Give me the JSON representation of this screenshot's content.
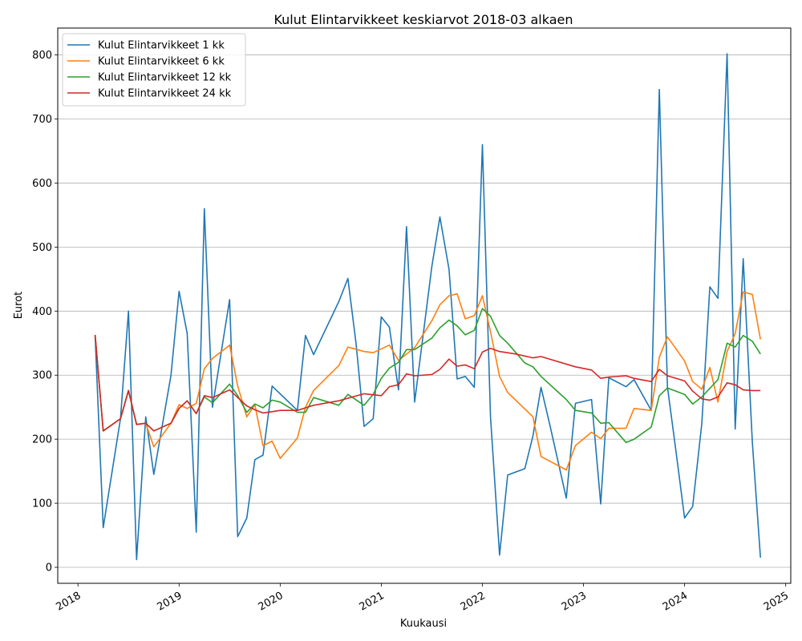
{
  "chart_data": {
    "type": "line",
    "title": "Kulut Elintarvikkeet keskiarvot 2018-03 alkaen",
    "xlabel": "Kuukausi",
    "ylabel": "Eurot",
    "xlim": [
      2017.8,
      2025.05
    ],
    "ylim": [
      -25,
      842
    ],
    "grid": "horizontal",
    "legend_position": "top-left",
    "x_ticks": [
      {
        "label": "2018",
        "value": 2018.0
      },
      {
        "label": "2019",
        "value": 2019.0
      },
      {
        "label": "2020",
        "value": 2020.0
      },
      {
        "label": "2021",
        "value": 2021.0
      },
      {
        "label": "2022",
        "value": 2022.0
      },
      {
        "label": "2023",
        "value": 2023.0
      },
      {
        "label": "2024",
        "value": 2024.0
      },
      {
        "label": "2025",
        "value": 2025.0
      }
    ],
    "y_ticks": [
      0,
      100,
      200,
      300,
      400,
      500,
      600,
      700,
      800
    ],
    "series": [
      {
        "name": "Kulut Elintarvikkeet 1 kk",
        "color": "#1f77b4",
        "points": [
          [
            2018.17,
            362
          ],
          [
            2018.25,
            62
          ],
          [
            2018.42,
            232
          ],
          [
            2018.5,
            400
          ],
          [
            2018.58,
            12
          ],
          [
            2018.67,
            235
          ],
          [
            2018.75,
            145
          ],
          [
            2018.92,
            300
          ],
          [
            2019.0,
            431
          ],
          [
            2019.08,
            365
          ],
          [
            2019.17,
            55
          ],
          [
            2019.25,
            560
          ],
          [
            2019.33,
            250
          ],
          [
            2019.5,
            418
          ],
          [
            2019.58,
            48
          ],
          [
            2019.67,
            77
          ],
          [
            2019.75,
            168
          ],
          [
            2019.83,
            175
          ],
          [
            2019.92,
            283
          ],
          [
            2020.17,
            245
          ],
          [
            2020.25,
            362
          ],
          [
            2020.33,
            332
          ],
          [
            2020.58,
            415
          ],
          [
            2020.67,
            451
          ],
          [
            2020.75,
            350
          ],
          [
            2020.83,
            220
          ],
          [
            2020.92,
            232
          ],
          [
            2021.0,
            391
          ],
          [
            2021.08,
            375
          ],
          [
            2021.17,
            277
          ],
          [
            2021.25,
            532
          ],
          [
            2021.33,
            258
          ],
          [
            2021.5,
            470
          ],
          [
            2021.58,
            547
          ],
          [
            2021.67,
            465
          ],
          [
            2021.75,
            294
          ],
          [
            2021.83,
            298
          ],
          [
            2021.92,
            281
          ],
          [
            2022.0,
            660
          ],
          [
            2022.08,
            235
          ],
          [
            2022.17,
            19
          ],
          [
            2022.25,
            144
          ],
          [
            2022.42,
            154
          ],
          [
            2022.5,
            205
          ],
          [
            2022.58,
            281
          ],
          [
            2022.67,
            220
          ],
          [
            2022.83,
            108
          ],
          [
            2022.92,
            256
          ],
          [
            2023.08,
            262
          ],
          [
            2023.17,
            99
          ],
          [
            2023.25,
            296
          ],
          [
            2023.42,
            282
          ],
          [
            2023.5,
            293
          ],
          [
            2023.67,
            245
          ],
          [
            2023.75,
            746
          ],
          [
            2023.83,
            282
          ],
          [
            2023.92,
            175
          ],
          [
            2024.0,
            77
          ],
          [
            2024.08,
            95
          ],
          [
            2024.17,
            225
          ],
          [
            2024.25,
            438
          ],
          [
            2024.33,
            420
          ],
          [
            2024.42,
            802
          ],
          [
            2024.5,
            216
          ],
          [
            2024.58,
            482
          ],
          [
            2024.67,
            195
          ],
          [
            2024.75,
            15
          ]
        ]
      },
      {
        "name": "Kulut Elintarvikkeet 6 kk",
        "color": "#ff7f0e",
        "points": [
          [
            2018.17,
            363
          ],
          [
            2018.25,
            213
          ],
          [
            2018.42,
            232
          ],
          [
            2018.5,
            276
          ],
          [
            2018.58,
            223
          ],
          [
            2018.67,
            225
          ],
          [
            2018.75,
            188
          ],
          [
            2018.92,
            225
          ],
          [
            2019.0,
            254
          ],
          [
            2019.08,
            248
          ],
          [
            2019.17,
            256
          ],
          [
            2019.25,
            310
          ],
          [
            2019.33,
            326
          ],
          [
            2019.5,
            347
          ],
          [
            2019.58,
            283
          ],
          [
            2019.67,
            235
          ],
          [
            2019.75,
            254
          ],
          [
            2019.83,
            190
          ],
          [
            2019.92,
            197
          ],
          [
            2020.0,
            170
          ],
          [
            2020.17,
            202
          ],
          [
            2020.25,
            250
          ],
          [
            2020.33,
            276
          ],
          [
            2020.58,
            315
          ],
          [
            2020.67,
            344
          ],
          [
            2020.83,
            337
          ],
          [
            2020.92,
            335
          ],
          [
            2021.08,
            347
          ],
          [
            2021.17,
            323
          ],
          [
            2021.33,
            343
          ],
          [
            2021.5,
            385
          ],
          [
            2021.58,
            410
          ],
          [
            2021.67,
            424
          ],
          [
            2021.75,
            427
          ],
          [
            2021.83,
            388
          ],
          [
            2021.92,
            393
          ],
          [
            2022.0,
            424
          ],
          [
            2022.08,
            368
          ],
          [
            2022.17,
            298
          ],
          [
            2022.25,
            273
          ],
          [
            2022.5,
            235
          ],
          [
            2022.58,
            173
          ],
          [
            2022.83,
            152
          ],
          [
            2022.92,
            190
          ],
          [
            2023.08,
            211
          ],
          [
            2023.17,
            201
          ],
          [
            2023.25,
            217
          ],
          [
            2023.42,
            217
          ],
          [
            2023.5,
            248
          ],
          [
            2023.67,
            245
          ],
          [
            2023.75,
            328
          ],
          [
            2023.83,
            360
          ],
          [
            2024.0,
            322
          ],
          [
            2024.08,
            290
          ],
          [
            2024.17,
            278
          ],
          [
            2024.25,
            312
          ],
          [
            2024.33,
            258
          ],
          [
            2024.42,
            337
          ],
          [
            2024.5,
            365
          ],
          [
            2024.58,
            430
          ],
          [
            2024.67,
            426
          ],
          [
            2024.75,
            356
          ]
        ]
      },
      {
        "name": "Kulut Elintarvikkeet 12 kk",
        "color": "#2ca02c",
        "points": [
          [
            2018.17,
            363
          ],
          [
            2018.25,
            213
          ],
          [
            2018.42,
            232
          ],
          [
            2018.5,
            276
          ],
          [
            2018.58,
            223
          ],
          [
            2018.67,
            225
          ],
          [
            2018.75,
            213
          ],
          [
            2018.92,
            225
          ],
          [
            2019.0,
            248
          ],
          [
            2019.08,
            260
          ],
          [
            2019.17,
            240
          ],
          [
            2019.25,
            266
          ],
          [
            2019.33,
            257
          ],
          [
            2019.5,
            286
          ],
          [
            2019.58,
            268
          ],
          [
            2019.67,
            242
          ],
          [
            2019.75,
            255
          ],
          [
            2019.83,
            249
          ],
          [
            2019.92,
            261
          ],
          [
            2020.0,
            258
          ],
          [
            2020.17,
            242
          ],
          [
            2020.25,
            242
          ],
          [
            2020.33,
            265
          ],
          [
            2020.58,
            253
          ],
          [
            2020.67,
            270
          ],
          [
            2020.83,
            253
          ],
          [
            2020.92,
            270
          ],
          [
            2021.0,
            295
          ],
          [
            2021.08,
            311
          ],
          [
            2021.17,
            320
          ],
          [
            2021.25,
            340
          ],
          [
            2021.33,
            340
          ],
          [
            2021.5,
            358
          ],
          [
            2021.58,
            374
          ],
          [
            2021.67,
            386
          ],
          [
            2021.75,
            377
          ],
          [
            2021.83,
            363
          ],
          [
            2021.92,
            370
          ],
          [
            2022.0,
            404
          ],
          [
            2022.08,
            392
          ],
          [
            2022.17,
            362
          ],
          [
            2022.25,
            350
          ],
          [
            2022.42,
            319
          ],
          [
            2022.5,
            313
          ],
          [
            2022.58,
            298
          ],
          [
            2022.83,
            262
          ],
          [
            2022.92,
            245
          ],
          [
            2023.08,
            241
          ],
          [
            2023.17,
            225
          ],
          [
            2023.25,
            226
          ],
          [
            2023.42,
            195
          ],
          [
            2023.5,
            200
          ],
          [
            2023.67,
            219
          ],
          [
            2023.75,
            268
          ],
          [
            2023.83,
            280
          ],
          [
            2024.0,
            270
          ],
          [
            2024.08,
            255
          ],
          [
            2024.17,
            266
          ],
          [
            2024.33,
            293
          ],
          [
            2024.42,
            350
          ],
          [
            2024.5,
            344
          ],
          [
            2024.58,
            362
          ],
          [
            2024.67,
            353
          ],
          [
            2024.75,
            333
          ]
        ]
      },
      {
        "name": "Kulut Elintarvikkeet 24 kk",
        "color": "#d62728",
        "points": [
          [
            2018.17,
            363
          ],
          [
            2018.25,
            213
          ],
          [
            2018.42,
            232
          ],
          [
            2018.5,
            276
          ],
          [
            2018.58,
            223
          ],
          [
            2018.67,
            225
          ],
          [
            2018.75,
            213
          ],
          [
            2018.92,
            225
          ],
          [
            2019.0,
            248
          ],
          [
            2019.08,
            260
          ],
          [
            2019.17,
            240
          ],
          [
            2019.25,
            268
          ],
          [
            2019.33,
            265
          ],
          [
            2019.5,
            277
          ],
          [
            2019.58,
            265
          ],
          [
            2019.67,
            252
          ],
          [
            2019.75,
            246
          ],
          [
            2019.83,
            241
          ],
          [
            2019.92,
            243
          ],
          [
            2020.0,
            245
          ],
          [
            2020.17,
            245
          ],
          [
            2020.33,
            253
          ],
          [
            2020.58,
            260
          ],
          [
            2020.83,
            271
          ],
          [
            2021.0,
            268
          ],
          [
            2021.08,
            282
          ],
          [
            2021.17,
            285
          ],
          [
            2021.25,
            302
          ],
          [
            2021.33,
            299
          ],
          [
            2021.5,
            301
          ],
          [
            2021.58,
            309
          ],
          [
            2021.67,
            325
          ],
          [
            2021.75,
            314
          ],
          [
            2021.83,
            316
          ],
          [
            2021.92,
            310
          ],
          [
            2022.0,
            336
          ],
          [
            2022.08,
            342
          ],
          [
            2022.17,
            337
          ],
          [
            2022.33,
            333
          ],
          [
            2022.5,
            327
          ],
          [
            2022.58,
            329
          ],
          [
            2022.92,
            313
          ],
          [
            2023.08,
            308
          ],
          [
            2023.17,
            295
          ],
          [
            2023.25,
            297
          ],
          [
            2023.42,
            299
          ],
          [
            2023.5,
            295
          ],
          [
            2023.67,
            290
          ],
          [
            2023.75,
            309
          ],
          [
            2023.83,
            299
          ],
          [
            2024.0,
            291
          ],
          [
            2024.08,
            275
          ],
          [
            2024.17,
            263
          ],
          [
            2024.25,
            261
          ],
          [
            2024.33,
            266
          ],
          [
            2024.42,
            288
          ],
          [
            2024.5,
            285
          ],
          [
            2024.58,
            277
          ],
          [
            2024.67,
            276
          ],
          [
            2024.75,
            276
          ]
        ]
      }
    ]
  }
}
